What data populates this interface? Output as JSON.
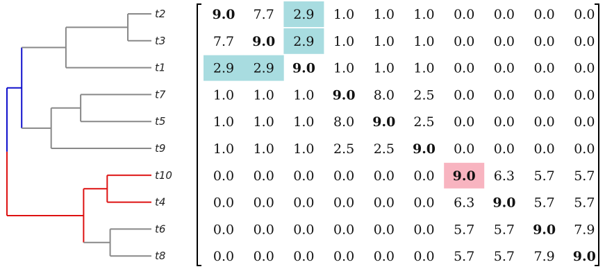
{
  "leaves": [
    "t2",
    "t3",
    "t1",
    "t7",
    "t5",
    "t9",
    "t10",
    "t4",
    "t6",
    "t8"
  ],
  "colors": {
    "branch_gray": "#888888",
    "branch_blue": "#1010cc",
    "branch_red": "#dd1111",
    "highlight_cyan": "#a8dce0",
    "highlight_pink": "#f8b4c0"
  },
  "dendrogram": {
    "clusters": [
      {
        "id": "c23",
        "children": [
          "t2",
          "t3"
        ],
        "height": 0.8,
        "color": "gray"
      },
      {
        "id": "c123",
        "children": [
          "c23",
          "t1"
        ],
        "height": 2.9,
        "color": "gray"
      },
      {
        "id": "c57",
        "children": [
          "t7",
          "t5"
        ],
        "height": 2.4,
        "color": "gray"
      },
      {
        "id": "c579",
        "children": [
          "c57",
          "t9"
        ],
        "height": 3.4,
        "color": "gray"
      },
      {
        "id": "cTop",
        "children": [
          "c123",
          "c579"
        ],
        "height": 4.4,
        "color": "blue"
      },
      {
        "id": "c410",
        "children": [
          "t10",
          "t4"
        ],
        "height": 1.5,
        "color": "red"
      },
      {
        "id": "c68",
        "children": [
          "t6",
          "t8"
        ],
        "height": 1.4,
        "color": "gray"
      },
      {
        "id": "cBot",
        "children": [
          "c410",
          "c68"
        ],
        "height": 2.3,
        "color": "red"
      },
      {
        "id": "root",
        "children": [
          "cTop",
          "cBot"
        ],
        "height": 4.9,
        "color": "mixed"
      }
    ]
  },
  "matrix": {
    "values": [
      [
        "9.0",
        "7.7",
        "2.9",
        "1.0",
        "1.0",
        "1.0",
        "0.0",
        "0.0",
        "0.0",
        "0.0"
      ],
      [
        "7.7",
        "9.0",
        "2.9",
        "1.0",
        "1.0",
        "1.0",
        "0.0",
        "0.0",
        "0.0",
        "0.0"
      ],
      [
        "2.9",
        "2.9",
        "9.0",
        "1.0",
        "1.0",
        "1.0",
        "0.0",
        "0.0",
        "0.0",
        "0.0"
      ],
      [
        "1.0",
        "1.0",
        "1.0",
        "9.0",
        "8.0",
        "2.5",
        "0.0",
        "0.0",
        "0.0",
        "0.0"
      ],
      [
        "1.0",
        "1.0",
        "1.0",
        "8.0",
        "9.0",
        "2.5",
        "0.0",
        "0.0",
        "0.0",
        "0.0"
      ],
      [
        "1.0",
        "1.0",
        "1.0",
        "2.5",
        "2.5",
        "9.0",
        "0.0",
        "0.0",
        "0.0",
        "0.0"
      ],
      [
        "0.0",
        "0.0",
        "0.0",
        "0.0",
        "0.0",
        "0.0",
        "9.0",
        "6.3",
        "5.7",
        "5.7"
      ],
      [
        "0.0",
        "0.0",
        "0.0",
        "0.0",
        "0.0",
        "0.0",
        "6.3",
        "9.0",
        "5.7",
        "5.7"
      ],
      [
        "0.0",
        "0.0",
        "0.0",
        "0.0",
        "0.0",
        "0.0",
        "5.7",
        "5.7",
        "9.0",
        "7.9"
      ],
      [
        "0.0",
        "0.0",
        "0.0",
        "0.0",
        "0.0",
        "0.0",
        "5.7",
        "5.7",
        "7.9",
        "9.0"
      ]
    ],
    "highlights": [
      {
        "row": 0,
        "col": 2,
        "color": "cyan"
      },
      {
        "row": 1,
        "col": 2,
        "color": "cyan"
      },
      {
        "row": 2,
        "col": 0,
        "color": "cyan"
      },
      {
        "row": 2,
        "col": 1,
        "color": "cyan"
      },
      {
        "row": 6,
        "col": 6,
        "color": "pink"
      }
    ]
  }
}
